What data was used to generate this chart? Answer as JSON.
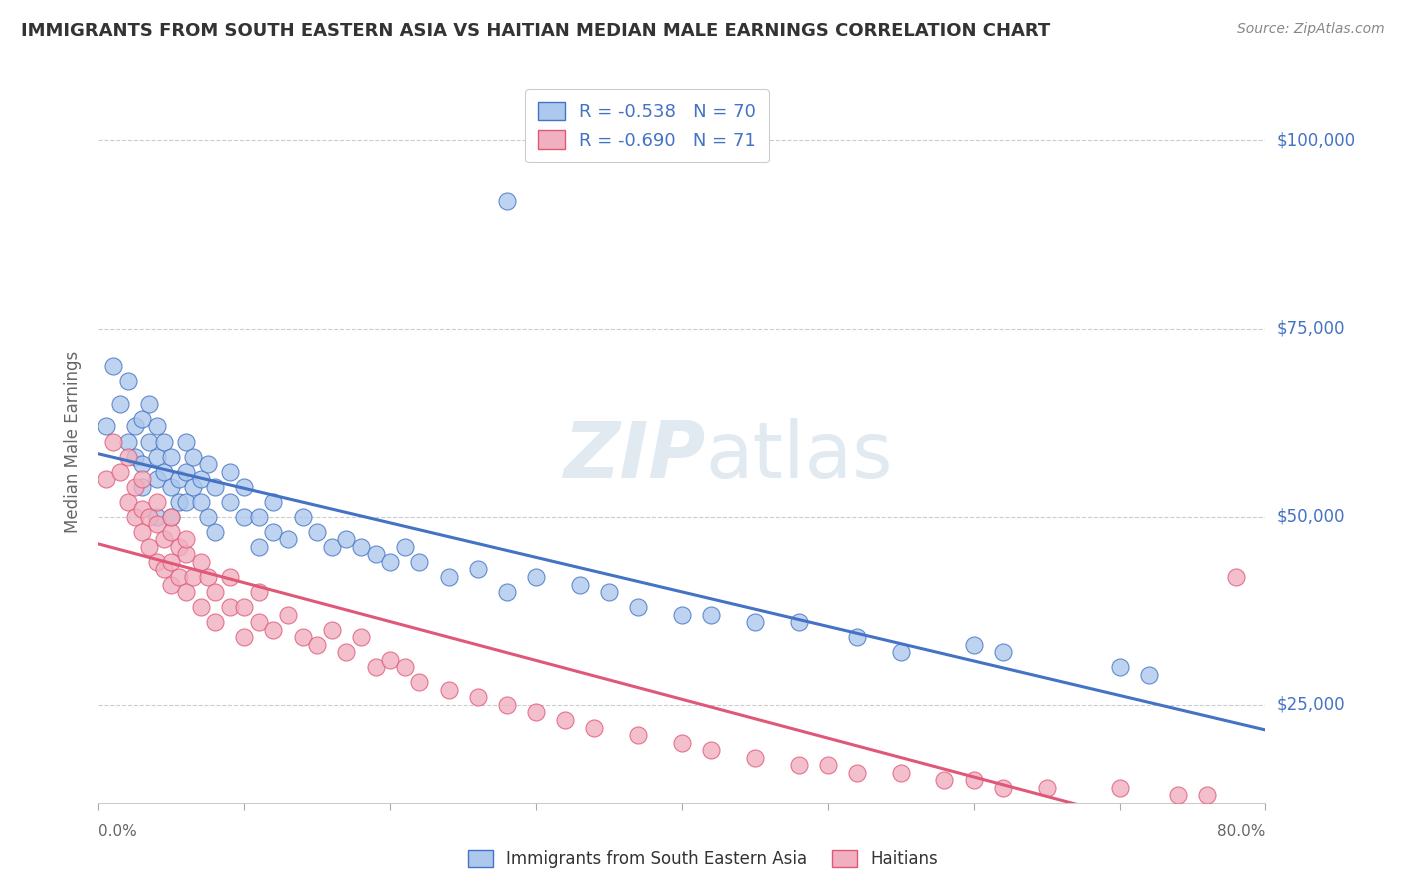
{
  "title": "IMMIGRANTS FROM SOUTH EASTERN ASIA VS HAITIAN MEDIAN MALE EARNINGS CORRELATION CHART",
  "source": "Source: ZipAtlas.com",
  "ylabel": "Median Male Earnings",
  "legend_entries": [
    {
      "label": "Immigrants from South Eastern Asia",
      "R": -0.538,
      "N": 70,
      "color": "#adc8ed",
      "line_color": "#4472c4"
    },
    {
      "label": "Haitians",
      "R": -0.69,
      "N": 71,
      "color": "#f0b0c0",
      "line_color": "#e05878"
    }
  ],
  "right_yticks": [
    "$100,000",
    "$75,000",
    "$50,000",
    "$25,000"
  ],
  "right_ytick_vals": [
    100000,
    75000,
    50000,
    25000
  ],
  "watermark": "ZIPatlas",
  "title_color": "#333333",
  "source_color": "#888888",
  "right_label_color": "#4472c4",
  "background_color": "#ffffff",
  "plot_background": "#ffffff",
  "grid_color": "#cccccc",
  "xlim": [
    0,
    0.8
  ],
  "ylim": [
    12000,
    108000
  ],
  "blue_scatter_x": [
    0.005,
    0.01,
    0.015,
    0.02,
    0.02,
    0.025,
    0.025,
    0.03,
    0.03,
    0.03,
    0.035,
    0.035,
    0.04,
    0.04,
    0.04,
    0.04,
    0.045,
    0.045,
    0.05,
    0.05,
    0.05,
    0.055,
    0.055,
    0.06,
    0.06,
    0.06,
    0.065,
    0.065,
    0.07,
    0.07,
    0.075,
    0.075,
    0.08,
    0.08,
    0.09,
    0.09,
    0.1,
    0.1,
    0.11,
    0.11,
    0.12,
    0.12,
    0.13,
    0.14,
    0.15,
    0.16,
    0.17,
    0.18,
    0.19,
    0.2,
    0.21,
    0.22,
    0.24,
    0.26,
    0.28,
    0.3,
    0.33,
    0.35,
    0.37,
    0.4,
    0.42,
    0.45,
    0.48,
    0.52,
    0.55,
    0.6,
    0.62,
    0.7,
    0.72,
    0.28
  ],
  "blue_scatter_y": [
    62000,
    70000,
    65000,
    60000,
    68000,
    58000,
    62000,
    63000,
    57000,
    54000,
    60000,
    65000,
    58000,
    55000,
    62000,
    50000,
    56000,
    60000,
    54000,
    58000,
    50000,
    55000,
    52000,
    56000,
    60000,
    52000,
    54000,
    58000,
    52000,
    55000,
    50000,
    57000,
    54000,
    48000,
    52000,
    56000,
    50000,
    54000,
    50000,
    46000,
    48000,
    52000,
    47000,
    50000,
    48000,
    46000,
    47000,
    46000,
    45000,
    44000,
    46000,
    44000,
    42000,
    43000,
    40000,
    42000,
    41000,
    40000,
    38000,
    37000,
    37000,
    36000,
    36000,
    34000,
    32000,
    33000,
    32000,
    30000,
    29000,
    92000
  ],
  "pink_scatter_x": [
    0.005,
    0.01,
    0.015,
    0.02,
    0.02,
    0.025,
    0.025,
    0.03,
    0.03,
    0.03,
    0.035,
    0.035,
    0.04,
    0.04,
    0.04,
    0.045,
    0.045,
    0.05,
    0.05,
    0.05,
    0.05,
    0.055,
    0.055,
    0.06,
    0.06,
    0.06,
    0.065,
    0.07,
    0.07,
    0.075,
    0.08,
    0.08,
    0.09,
    0.09,
    0.1,
    0.1,
    0.11,
    0.11,
    0.12,
    0.13,
    0.14,
    0.15,
    0.16,
    0.17,
    0.18,
    0.19,
    0.2,
    0.21,
    0.22,
    0.24,
    0.26,
    0.28,
    0.3,
    0.32,
    0.34,
    0.37,
    0.4,
    0.42,
    0.45,
    0.48,
    0.5,
    0.52,
    0.55,
    0.58,
    0.6,
    0.62,
    0.65,
    0.7,
    0.74,
    0.76,
    0.78
  ],
  "pink_scatter_y": [
    55000,
    60000,
    56000,
    52000,
    58000,
    50000,
    54000,
    51000,
    48000,
    55000,
    50000,
    46000,
    49000,
    44000,
    52000,
    47000,
    43000,
    48000,
    44000,
    50000,
    41000,
    46000,
    42000,
    45000,
    40000,
    47000,
    42000,
    44000,
    38000,
    42000,
    40000,
    36000,
    38000,
    42000,
    38000,
    34000,
    36000,
    40000,
    35000,
    37000,
    34000,
    33000,
    35000,
    32000,
    34000,
    30000,
    31000,
    30000,
    28000,
    27000,
    26000,
    25000,
    24000,
    23000,
    22000,
    21000,
    20000,
    19000,
    18000,
    17000,
    17000,
    16000,
    16000,
    15000,
    15000,
    14000,
    14000,
    14000,
    13000,
    13000,
    42000
  ]
}
